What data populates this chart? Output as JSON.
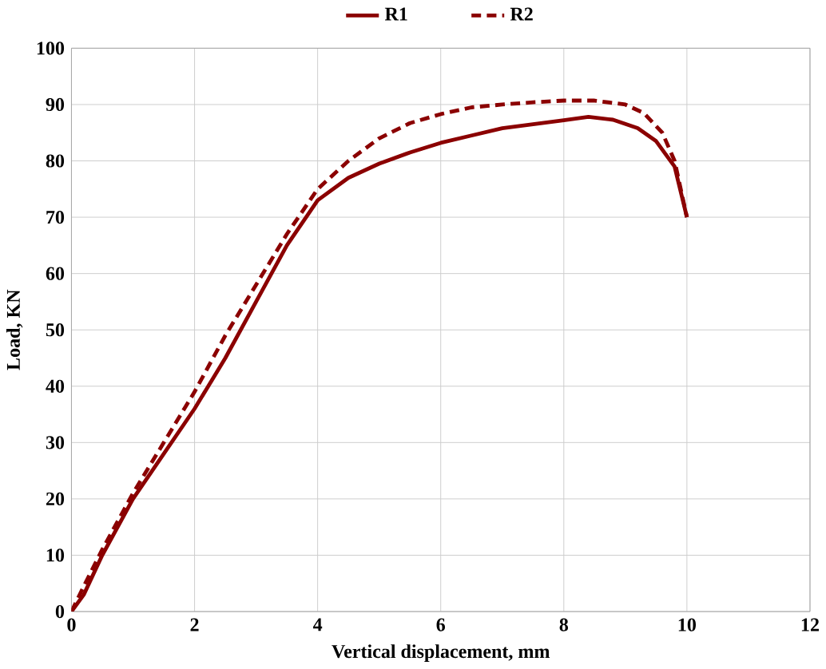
{
  "chart_data": {
    "type": "line",
    "xlabel": "Vertical displacement, mm",
    "ylabel": "Load, KN",
    "xlim": [
      0,
      12
    ],
    "xticks": [
      0,
      2,
      4,
      6,
      8,
      10,
      12
    ],
    "ylim": [
      0,
      100
    ],
    "yticks": [
      0,
      10,
      20,
      30,
      40,
      50,
      60,
      70,
      80,
      90,
      100
    ],
    "grid": true,
    "legend": "top",
    "marker": "none",
    "series": [
      {
        "name": "R1",
        "color": "#8b0000",
        "line_style": "solid",
        "x": [
          0,
          0.2,
          0.5,
          1,
          1.5,
          2,
          2.5,
          3,
          3.5,
          4,
          4.5,
          5,
          5.5,
          6,
          6.5,
          7,
          7.5,
          8,
          8.4,
          8.8,
          9.2,
          9.5,
          9.8,
          10
        ],
        "values": [
          0,
          3,
          10,
          20,
          28,
          36,
          45,
          55,
          65,
          73,
          77,
          79.5,
          81.5,
          83.2,
          84.5,
          85.8,
          86.5,
          87.2,
          87.8,
          87.3,
          85.8,
          83.5,
          79,
          70
        ]
      },
      {
        "name": "R2",
        "color": "#8b0000",
        "line_style": "dashed",
        "x": [
          0,
          0.2,
          0.5,
          1,
          1.5,
          2,
          2.5,
          3,
          3.5,
          4,
          4.5,
          5,
          5.5,
          6,
          6.5,
          7,
          7.5,
          8,
          8.5,
          9,
          9.3,
          9.6,
          9.8,
          10
        ],
        "values": [
          0,
          4.5,
          11,
          21,
          30,
          39,
          49,
          58,
          67,
          75,
          80,
          84,
          86.7,
          88.3,
          89.5,
          90,
          90.4,
          90.7,
          90.7,
          90,
          88.5,
          85,
          80,
          70
        ]
      }
    ]
  }
}
